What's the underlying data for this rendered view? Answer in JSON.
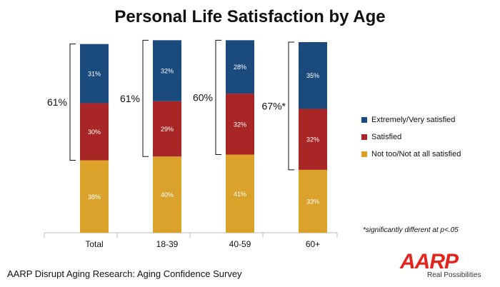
{
  "chart_data": {
    "type": "bar",
    "stacked": true,
    "title": "Personal Life Satisfaction by Age",
    "categories": [
      "Total",
      "18-39",
      "40-59",
      "60+"
    ],
    "series": [
      {
        "name": "Not too/Not at all satisfied",
        "color": "#dba22b",
        "values": [
          38,
          40,
          41,
          33
        ]
      },
      {
        "name": "Satisfied",
        "color": "#a82626",
        "values": [
          30,
          29,
          32,
          32
        ]
      },
      {
        "name": "Extremely/Very satisfied",
        "color": "#1b4a7c",
        "values": [
          31,
          32,
          28,
          35
        ]
      }
    ],
    "bracket_labels": [
      "61%",
      "61%",
      "60%",
      "67%*"
    ],
    "legend": [
      "Extremely/Very satisfied",
      "Satisfied",
      "Not too/Not at all satisfied"
    ],
    "legend_position": "right",
    "grid": false
  },
  "footnote": "*significantly different at p<.05",
  "source": "AARP Disrupt Aging Research: Aging Confidence Survey",
  "logo": {
    "text": "AARP",
    "tagline": "Real Possibilities"
  }
}
